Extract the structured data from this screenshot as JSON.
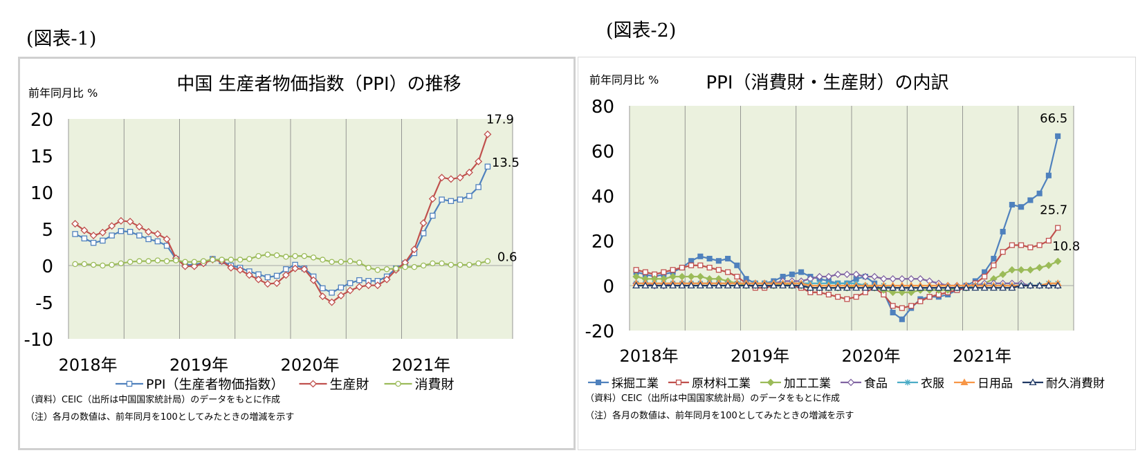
{
  "figures": {
    "left_label": "(図表-1)",
    "right_label": "(図表-2)"
  },
  "chart_data": [
    {
      "type": "line",
      "title": "中国 生産者物価指数（PPI）の推移",
      "unit_label": "前年同月比 %",
      "ylim": [
        -10,
        20
      ],
      "yticks": [
        20,
        15,
        10,
        5,
        0,
        -5,
        -10
      ],
      "x_labels": [
        "2018年",
        "2019年",
        "2020年",
        "2021年"
      ],
      "grid": "vertical-yearly",
      "legend_position": "bottom",
      "series": [
        {
          "name": "PPI（生産者物価指数）",
          "color": "#4f81bd",
          "marker": "square-open",
          "values": [
            4.3,
            3.7,
            3.1,
            3.4,
            4.1,
            4.7,
            4.6,
            4.1,
            3.6,
            3.3,
            2.7,
            0.9,
            0.1,
            0.1,
            0.4,
            0.9,
            0.6,
            0,
            -0.3,
            -0.8,
            -1.2,
            -1.6,
            -1.4,
            -0.5,
            0.1,
            -0.4,
            -1.5,
            -3.1,
            -3.7,
            -3,
            -2.4,
            -2,
            -2.1,
            -2.1,
            -1.5,
            -0.4,
            0.3,
            1.7,
            4.4,
            6.8,
            9,
            8.8,
            9,
            9.5,
            10.7,
            13.5
          ],
          "end_label": "13.5"
        },
        {
          "name": "生産財",
          "color": "#c0504d",
          "marker": "diamond-open",
          "values": [
            5.7,
            4.8,
            4.1,
            4.5,
            5.4,
            6.1,
            6,
            5.3,
            4.6,
            4.3,
            3.6,
            1,
            -0.1,
            -0.1,
            0.3,
            0.8,
            0.6,
            -0.3,
            -0.6,
            -1.3,
            -1.9,
            -2.5,
            -2.4,
            -1.3,
            -0.4,
            -0.5,
            -2,
            -4.2,
            -5,
            -4.1,
            -3.4,
            -2.9,
            -2.7,
            -2.7,
            -1.9,
            -0.6,
            0.4,
            2.2,
            5.8,
            9.1,
            12,
            11.8,
            12,
            12.7,
            14.2,
            17.9
          ],
          "end_label": "17.9"
        },
        {
          "name": "消費財",
          "color": "#9bbb59",
          "marker": "circle-open",
          "values": [
            0.2,
            0.2,
            0.1,
            0,
            0.1,
            0.3,
            0.5,
            0.6,
            0.6,
            0.7,
            0.6,
            0.7,
            0.5,
            0.5,
            0.6,
            0.8,
            0.8,
            0.8,
            0.8,
            0.9,
            1.3,
            1.5,
            1.4,
            1.2,
            1.3,
            1.3,
            1.1,
            0.8,
            0.5,
            0.5,
            0.6,
            0.4,
            -0.3,
            -0.6,
            -0.5,
            -0.4,
            -0.2,
            -0.2,
            0,
            0.3,
            0.3,
            0.1,
            0.1,
            0.1,
            0.3,
            0.6
          ],
          "end_label": "0.6"
        }
      ],
      "footnotes": [
        "（資料）CEIC（出所は中国国家統計局）のデータをもとに作成",
        "（注）各月の数値は、前年同月を100としてみたときの増減を示す"
      ]
    },
    {
      "type": "line",
      "title": "PPI（消費財・生産財）の内訳",
      "unit_label": "前年同月比 %",
      "ylim": [
        -20,
        80
      ],
      "yticks": [
        80,
        60,
        40,
        20,
        0,
        -20
      ],
      "x_labels": [
        "2018年",
        "2019年",
        "2020年",
        "2021年"
      ],
      "grid": "vertical-yearly",
      "legend_position": "bottom",
      "series": [
        {
          "name": "採掘工業",
          "color": "#4f81bd",
          "marker": "square-filled",
          "values": [
            6,
            5,
            4,
            5,
            6,
            8,
            11,
            13,
            12,
            11,
            12,
            9,
            3,
            1,
            1,
            2,
            4,
            5,
            6,
            4,
            3,
            2,
            1,
            1,
            3,
            4,
            1,
            -3,
            -12,
            -15,
            -10,
            -6,
            -5,
            -5,
            -4,
            -2,
            0,
            2,
            6,
            12,
            24,
            36,
            35,
            38,
            41,
            49,
            66.5
          ],
          "end_label": "66.5"
        },
        {
          "name": "原材料工業",
          "color": "#c0504d",
          "marker": "square-open",
          "values": [
            7,
            6,
            5,
            6,
            7,
            8,
            9,
            9,
            8,
            7,
            6,
            4,
            1,
            -1,
            -1,
            0,
            1,
            0,
            -1,
            -3,
            -3,
            -4,
            -5,
            -6,
            -5,
            -3,
            -1,
            -4,
            -9,
            -10,
            -9,
            -7,
            -5,
            -4,
            -3,
            -2,
            -1,
            1,
            4,
            9,
            15,
            18,
            18,
            17,
            18,
            20,
            25.7
          ],
          "end_label": "25.7"
        },
        {
          "name": "加工工業",
          "color": "#9bbb59",
          "marker": "diamond-filled",
          "values": [
            4,
            3,
            3,
            3,
            4,
            4,
            4,
            4,
            3,
            3,
            2,
            1,
            0,
            0,
            0,
            0,
            1,
            0,
            0,
            -1,
            -1,
            -1,
            -1,
            -1,
            0,
            0,
            -1,
            -2,
            -3,
            -3,
            -3,
            -2,
            -2,
            -2,
            -2,
            -1,
            -1,
            0,
            1,
            3,
            5,
            7,
            7,
            7,
            8,
            9,
            10.8
          ],
          "end_label": "10.8"
        },
        {
          "name": "食品",
          "color": "#8064a2",
          "marker": "diamond-open",
          "values": [
            1,
            1,
            0,
            0,
            1,
            1,
            1,
            1,
            1,
            1,
            1,
            1,
            1,
            1,
            1,
            1,
            2,
            2,
            2,
            3,
            4,
            4,
            5,
            5,
            5,
            4,
            4,
            3,
            3,
            3,
            3,
            3,
            2,
            1,
            0,
            0,
            0,
            0,
            1,
            1,
            1,
            1,
            1,
            0,
            0,
            0,
            0
          ]
        },
        {
          "name": "衣服",
          "color": "#4bacc6",
          "marker": "star",
          "values": [
            1,
            1,
            1,
            1,
            1,
            1,
            1,
            1,
            1,
            1,
            1,
            1,
            1,
            1,
            1,
            1,
            1,
            1,
            1,
            1,
            1,
            1,
            1,
            1,
            1,
            0,
            0,
            0,
            -1,
            -1,
            -1,
            -1,
            -1,
            -1,
            -1,
            -1,
            -1,
            0,
            0,
            0,
            0,
            0,
            0,
            0,
            0,
            1,
            1
          ]
        },
        {
          "name": "日用品",
          "color": "#f79646",
          "marker": "triangle-filled",
          "values": [
            1,
            1,
            1,
            1,
            1,
            1,
            1,
            1,
            1,
            1,
            1,
            1,
            1,
            1,
            1,
            1,
            1,
            1,
            1,
            0,
            0,
            0,
            0,
            0,
            0,
            0,
            0,
            0,
            0,
            0,
            0,
            0,
            0,
            0,
            0,
            0,
            0,
            0,
            0,
            0,
            0,
            0,
            0,
            0,
            0,
            1,
            1
          ]
        },
        {
          "name": "耐久消費財",
          "color": "#1f3864",
          "marker": "triangle-open",
          "values": [
            0,
            0,
            0,
            0,
            0,
            0,
            0,
            0,
            0,
            0,
            0,
            0,
            0,
            0,
            0,
            0,
            0,
            0,
            0,
            -1,
            -1,
            -1,
            -1,
            -1,
            -1,
            -1,
            -1,
            -1,
            -1,
            -1,
            -1,
            -1,
            -1,
            -1,
            -1,
            -1,
            -1,
            -1,
            -1,
            -1,
            -1,
            -1,
            0,
            0,
            0,
            0,
            0
          ]
        }
      ],
      "footnotes": [
        "（資料）CEIC（出所は中国国家統計局）のデータをもとに作成",
        "（注）各月の数値は、前年同月を100としてみたときの増減を示す"
      ]
    }
  ]
}
